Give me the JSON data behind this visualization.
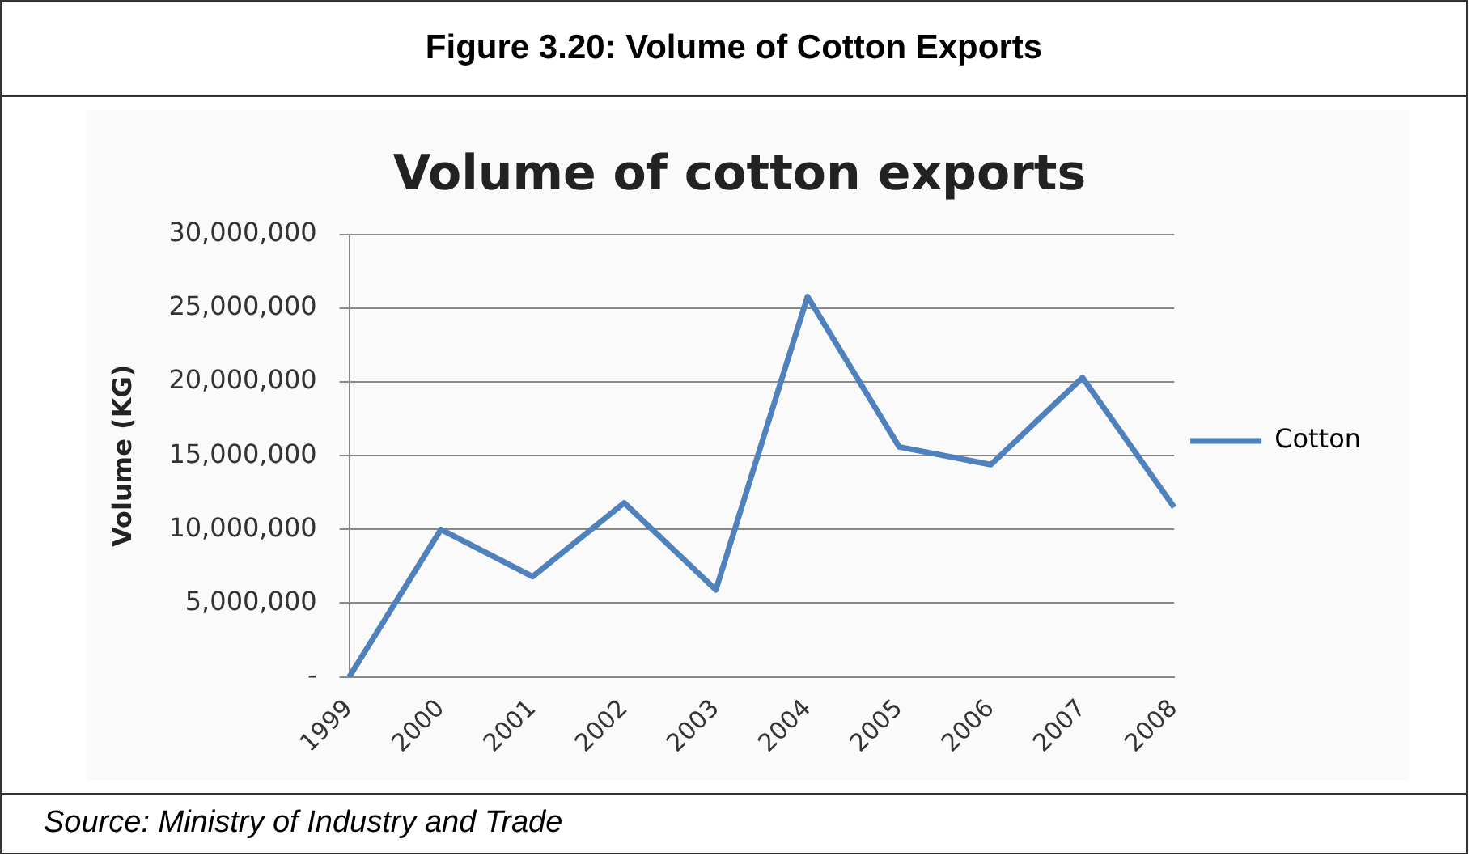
{
  "chart_data": {
    "type": "line",
    "title": "Figure 3.20: Volume of Cotton Exports",
    "subtitle": "Volume of cotton exports",
    "ylabel": "Volume (KG)",
    "categories": [
      "1999",
      "2000",
      "2001",
      "2002",
      "2003",
      "2004",
      "2005",
      "2006",
      "2007",
      "2008"
    ],
    "series": [
      {
        "name": "Cotton",
        "color": "#4f81bd",
        "values": [
          0,
          10000000,
          6800000,
          11800000,
          5900000,
          25800000,
          15600000,
          14400000,
          20300000,
          11500000
        ]
      }
    ],
    "ylim": [
      0,
      30000000
    ],
    "yticks": [
      {
        "value": 0,
        "label": "-"
      },
      {
        "value": 5000000,
        "label": "5,000,000"
      },
      {
        "value": 10000000,
        "label": "10,000,000"
      },
      {
        "value": 15000000,
        "label": "15,000,000"
      },
      {
        "value": 20000000,
        "label": "20,000,000"
      },
      {
        "value": 25000000,
        "label": "25,000,000"
      },
      {
        "value": 30000000,
        "label": "30,000,000"
      }
    ],
    "grid": "y",
    "legend": "right",
    "marker": "none",
    "line_style": "solid",
    "annotations": [
      "Source: Ministry of Industry and Trade"
    ]
  }
}
